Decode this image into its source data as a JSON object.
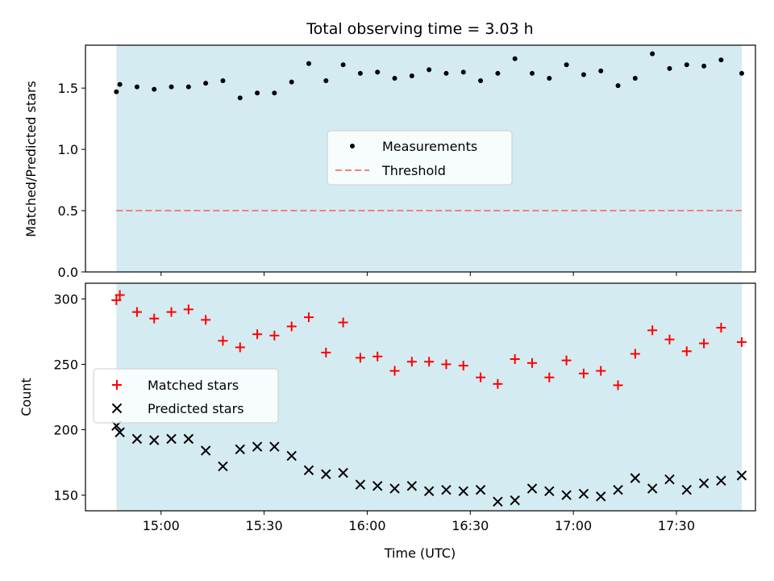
{
  "chart_data": [
    {
      "type": "scatter",
      "title": "Total observing time = 3.03 h",
      "xlabel": "",
      "ylabel": "Matched/Predicted stars",
      "x_axis": "time (UTC, HH:MM)",
      "xlim": [
        "14:38",
        "17:53"
      ],
      "ylim": [
        0.0,
        1.85
      ],
      "yticks": [
        0.0,
        0.5,
        1.0,
        1.5
      ],
      "ytick_labels": [
        "0.0",
        "0.5",
        "1.0",
        "1.5"
      ],
      "shaded_interval": [
        "14:47",
        "17:49"
      ],
      "shade_color": "#add8e6",
      "legend_position": "center",
      "series": [
        {
          "name": "Measurements",
          "kind": "scatter",
          "color": "#000000",
          "x": [
            "14:47",
            "14:48",
            "14:53",
            "14:58",
            "15:03",
            "15:08",
            "15:13",
            "15:18",
            "15:23",
            "15:28",
            "15:33",
            "15:38",
            "15:43",
            "15:48",
            "15:53",
            "15:58",
            "16:03",
            "16:08",
            "16:13",
            "16:18",
            "16:23",
            "16:28",
            "16:33",
            "16:38",
            "16:43",
            "16:48",
            "16:53",
            "16:58",
            "17:03",
            "17:08",
            "17:13",
            "17:18",
            "17:23",
            "17:28",
            "17:33",
            "17:38",
            "17:43",
            "17:49"
          ],
          "y": [
            1.47,
            1.53,
            1.51,
            1.49,
            1.51,
            1.51,
            1.54,
            1.56,
            1.42,
            1.46,
            1.46,
            1.55,
            1.7,
            1.56,
            1.69,
            1.62,
            1.63,
            1.58,
            1.6,
            1.65,
            1.62,
            1.63,
            1.56,
            1.62,
            1.74,
            1.62,
            1.58,
            1.69,
            1.61,
            1.64,
            1.52,
            1.58,
            1.78,
            1.66,
            1.69,
            1.68,
            1.73,
            1.62
          ]
        },
        {
          "name": "Threshold",
          "kind": "line",
          "style": "dashed",
          "color": "#f08080",
          "x": [
            "14:47",
            "17:49"
          ],
          "y": [
            0.5,
            0.5
          ]
        }
      ]
    },
    {
      "type": "scatter",
      "title": "",
      "xlabel": "Time (UTC)",
      "ylabel": "Count",
      "xlim": [
        "14:38",
        "17:53"
      ],
      "xticks": [
        "15:00",
        "15:30",
        "16:00",
        "16:30",
        "17:00",
        "17:30"
      ],
      "ylim": [
        138,
        312
      ],
      "yticks": [
        150,
        200,
        250,
        300
      ],
      "shaded_interval": [
        "14:47",
        "17:49"
      ],
      "shade_color": "#add8e6",
      "legend_position": "center-left",
      "series": [
        {
          "name": "Matched stars",
          "marker": "+",
          "color": "#ff0000",
          "x": [
            "14:47",
            "14:48",
            "14:53",
            "14:58",
            "15:03",
            "15:08",
            "15:13",
            "15:18",
            "15:23",
            "15:28",
            "15:33",
            "15:38",
            "15:43",
            "15:48",
            "15:53",
            "15:58",
            "16:03",
            "16:08",
            "16:13",
            "16:18",
            "16:23",
            "16:28",
            "16:33",
            "16:38",
            "16:43",
            "16:48",
            "16:53",
            "16:58",
            "17:03",
            "17:08",
            "17:13",
            "17:18",
            "17:23",
            "17:28",
            "17:33",
            "17:38",
            "17:43",
            "17:49"
          ],
          "y": [
            299,
            303,
            290,
            285,
            290,
            292,
            284,
            268,
            263,
            273,
            272,
            279,
            286,
            259,
            282,
            255,
            256,
            245,
            252,
            252,
            250,
            249,
            240,
            235,
            254,
            251,
            240,
            253,
            243,
            245,
            234,
            258,
            276,
            269,
            260,
            266,
            278,
            267
          ]
        },
        {
          "name": "Predicted stars",
          "marker": "x",
          "color": "#000000",
          "x": [
            "14:47",
            "14:48",
            "14:53",
            "14:58",
            "15:03",
            "15:08",
            "15:13",
            "15:18",
            "15:23",
            "15:28",
            "15:33",
            "15:38",
            "15:43",
            "15:48",
            "15:53",
            "15:58",
            "16:03",
            "16:08",
            "16:13",
            "16:18",
            "16:23",
            "16:28",
            "16:33",
            "16:38",
            "16:43",
            "16:48",
            "16:53",
            "16:58",
            "17:03",
            "17:08",
            "17:13",
            "17:18",
            "17:23",
            "17:28",
            "17:33",
            "17:38",
            "17:43",
            "17:49"
          ],
          "y": [
            203,
            198,
            193,
            192,
            193,
            193,
            184,
            172,
            185,
            187,
            187,
            180,
            169,
            166,
            167,
            158,
            157,
            155,
            157,
            153,
            154,
            153,
            154,
            145,
            146,
            155,
            153,
            150,
            151,
            149,
            154,
            163,
            155,
            162,
            154,
            159,
            161,
            165
          ]
        }
      ]
    }
  ]
}
